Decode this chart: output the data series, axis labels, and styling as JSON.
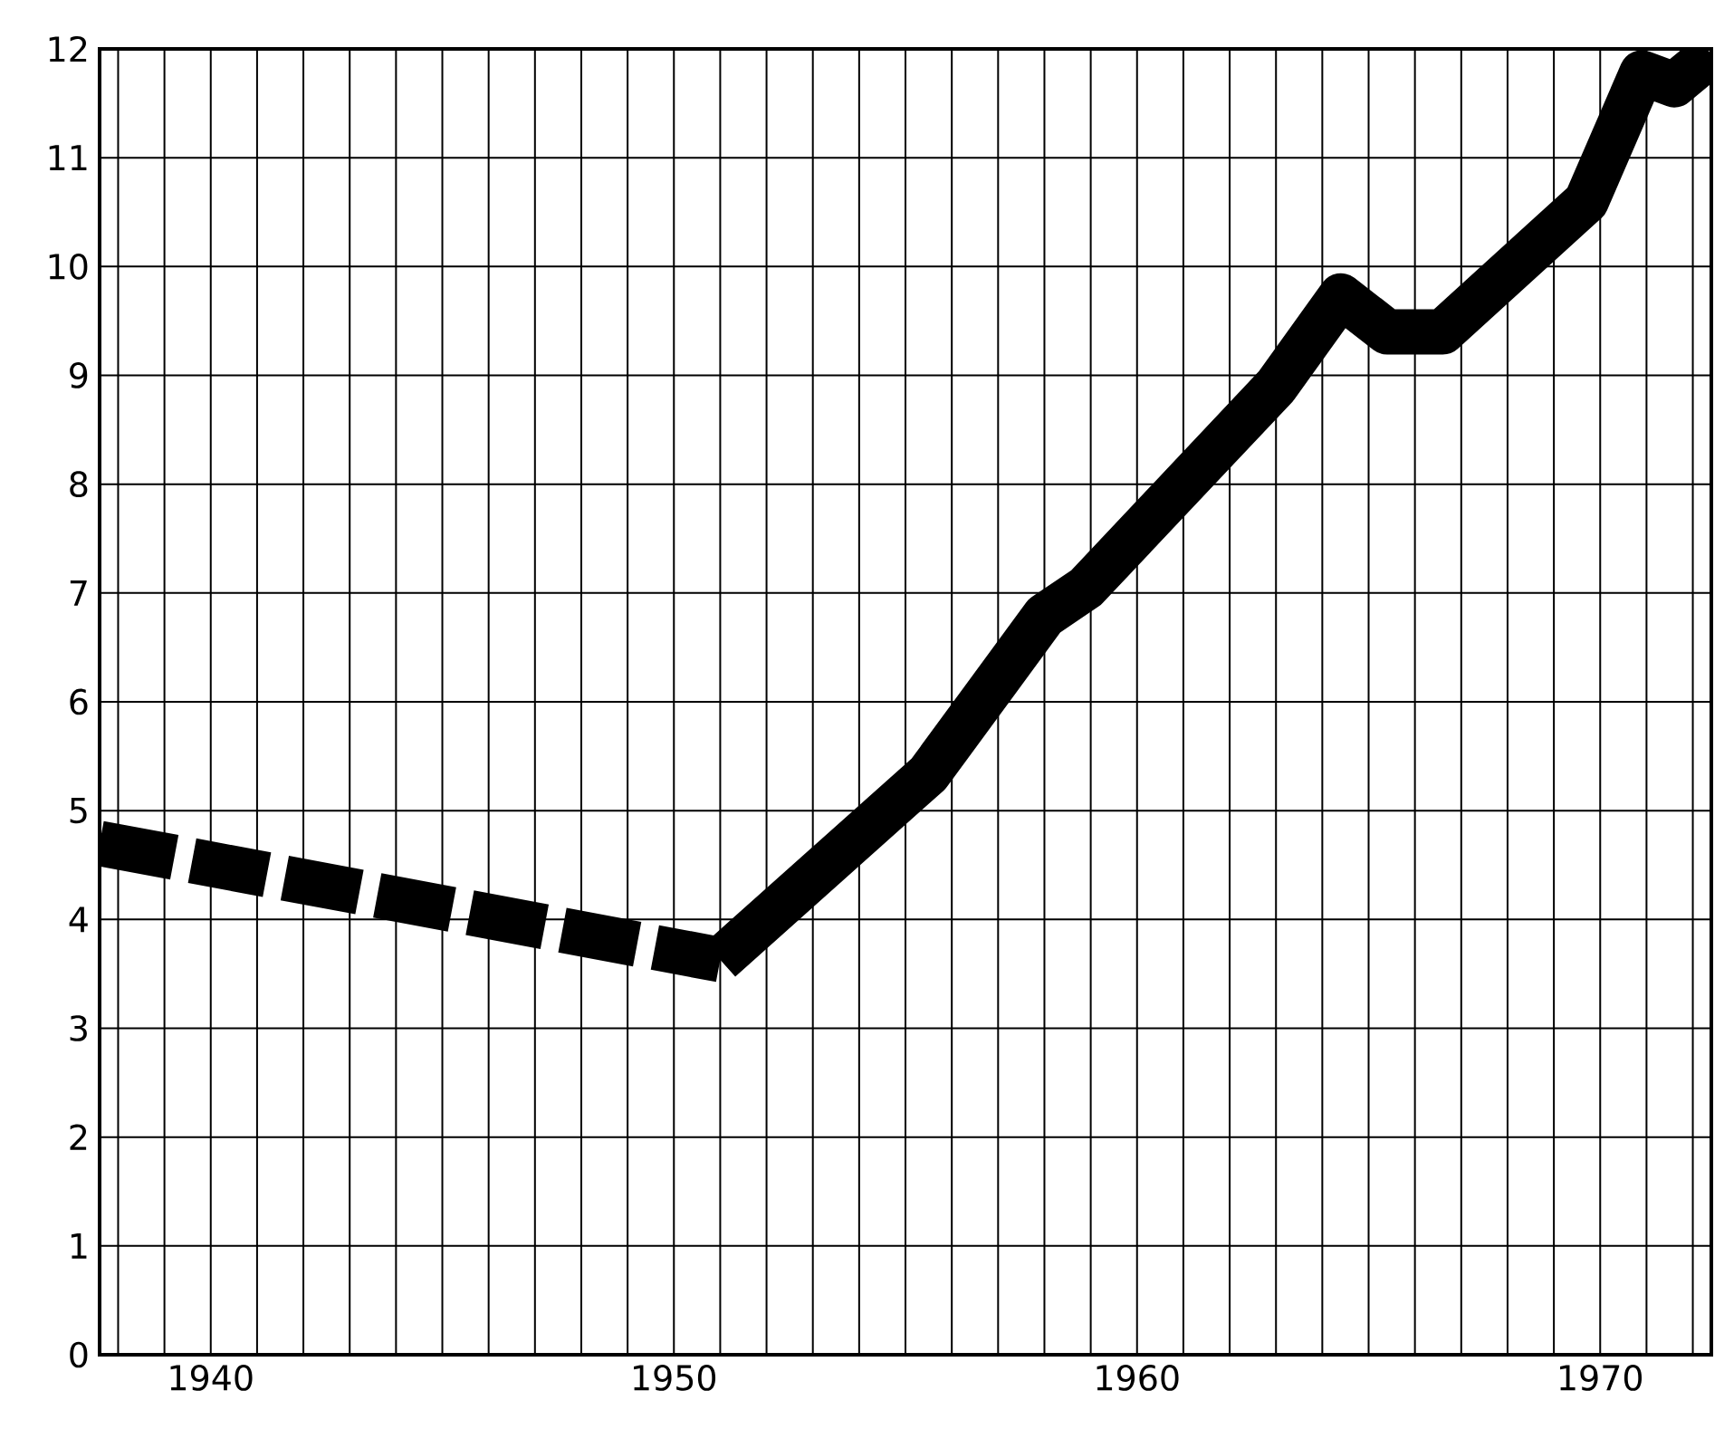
{
  "chart_data": {
    "type": "line",
    "series": [
      {
        "color": "#000000",
        "line_style": "dashed",
        "x": [
          1937.6,
          1951.0
        ],
        "values": [
          4.7,
          3.63
        ]
      },
      {
        "color": "#000000",
        "line_style": "solid",
        "x": [
          1951.0,
          1955.5,
          1958.0,
          1958.9,
          1963.0,
          1964.4,
          1965.4,
          1966.6,
          1969.7,
          1970.9,
          1971.6,
          1972.4
        ],
        "values": [
          3.63,
          5.34,
          6.79,
          7.05,
          8.9,
          9.73,
          9.4,
          9.4,
          10.6,
          11.78,
          11.67,
          11.95
        ]
      }
    ],
    "xlim": [
      1937.6,
      1972.4
    ],
    "ylim": [
      0,
      12
    ],
    "xticks": [
      {
        "value": 1938,
        "label": null
      },
      {
        "value": 1939,
        "label": null
      },
      1940,
      {
        "value": 1941,
        "label": null
      },
      {
        "value": 1942,
        "label": null
      },
      {
        "value": 1943,
        "label": null
      },
      {
        "value": 1944,
        "label": null
      },
      {
        "value": 1945,
        "label": null
      },
      {
        "value": 1946,
        "label": null
      },
      {
        "value": 1947,
        "label": null
      },
      {
        "value": 1948,
        "label": null
      },
      {
        "value": 1949,
        "label": null
      },
      1950,
      {
        "value": 1951,
        "label": null
      },
      {
        "value": 1952,
        "label": null
      },
      {
        "value": 1953,
        "label": null
      },
      {
        "value": 1954,
        "label": null
      },
      {
        "value": 1955,
        "label": null
      },
      {
        "value": 1956,
        "label": null
      },
      {
        "value": 1957,
        "label": null
      },
      {
        "value": 1958,
        "label": null
      },
      {
        "value": 1959,
        "label": null
      },
      1960,
      {
        "value": 1961,
        "label": null
      },
      {
        "value": 1962,
        "label": null
      },
      {
        "value": 1963,
        "label": null
      },
      {
        "value": 1964,
        "label": null
      },
      {
        "value": 1965,
        "label": null
      },
      {
        "value": 1966,
        "label": null
      },
      {
        "value": 1967,
        "label": null
      },
      {
        "value": 1968,
        "label": null
      },
      {
        "value": 1969,
        "label": null
      },
      1970,
      {
        "value": 1971,
        "label": null
      },
      {
        "value": 1972,
        "label": null
      }
    ],
    "yticks": [
      0,
      1,
      2,
      3,
      4,
      5,
      6,
      7,
      8,
      9,
      10,
      11,
      12
    ],
    "grid": true,
    "marker": "none"
  }
}
